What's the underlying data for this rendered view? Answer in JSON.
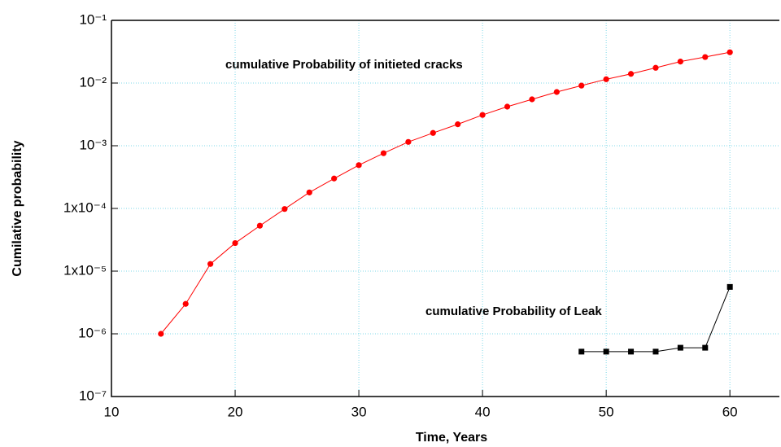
{
  "chart_data": {
    "type": "line",
    "xlabel": "Time, Years",
    "ylabel": "Cumilative probability",
    "annotations": [
      "cumulative Probability of initieted cracks",
      "cumulative Probability of Leak"
    ],
    "xlim": [
      10,
      64
    ],
    "xticks": [
      10,
      20,
      30,
      40,
      50,
      60
    ],
    "ylim": [
      1e-07,
      0.1
    ],
    "ylog": true,
    "grid": true,
    "yticks": [
      {
        "value": 1e-07,
        "label": "10⁻⁷"
      },
      {
        "value": 1e-06,
        "label": "10⁻⁶"
      },
      {
        "value": 1e-05,
        "label": "1x10⁻⁵"
      },
      {
        "value": 0.0001,
        "label": "1x10⁻⁴"
      },
      {
        "value": 0.001,
        "label": "10⁻³"
      },
      {
        "value": 0.01,
        "label": "10⁻²"
      },
      {
        "value": 0.1,
        "label": "10⁻¹"
      }
    ],
    "series": [
      {
        "color": "#ff0000",
        "marker": "circle",
        "x": [
          14,
          16,
          18,
          20,
          22,
          24,
          26,
          28,
          30,
          32,
          34,
          36,
          38,
          40,
          42,
          44,
          46,
          48,
          50,
          52,
          54,
          56,
          58,
          60
        ],
        "values": [
          1e-06,
          3e-06,
          1.3e-05,
          2.8e-05,
          5.3e-05,
          9.8e-05,
          0.00018,
          0.0003,
          0.00049,
          0.00076,
          0.00115,
          0.0016,
          0.0022,
          0.0031,
          0.0042,
          0.0055,
          0.0072,
          0.0091,
          0.0115,
          0.014,
          0.0175,
          0.022,
          0.026,
          0.031
        ]
      },
      {
        "color": "#000000",
        "marker": "square",
        "x": [
          48,
          50,
          52,
          54,
          56,
          58,
          60
        ],
        "values": [
          5.2e-07,
          5.2e-07,
          5.2e-07,
          5.2e-07,
          6e-07,
          6e-07,
          5.6e-06
        ]
      }
    ]
  }
}
